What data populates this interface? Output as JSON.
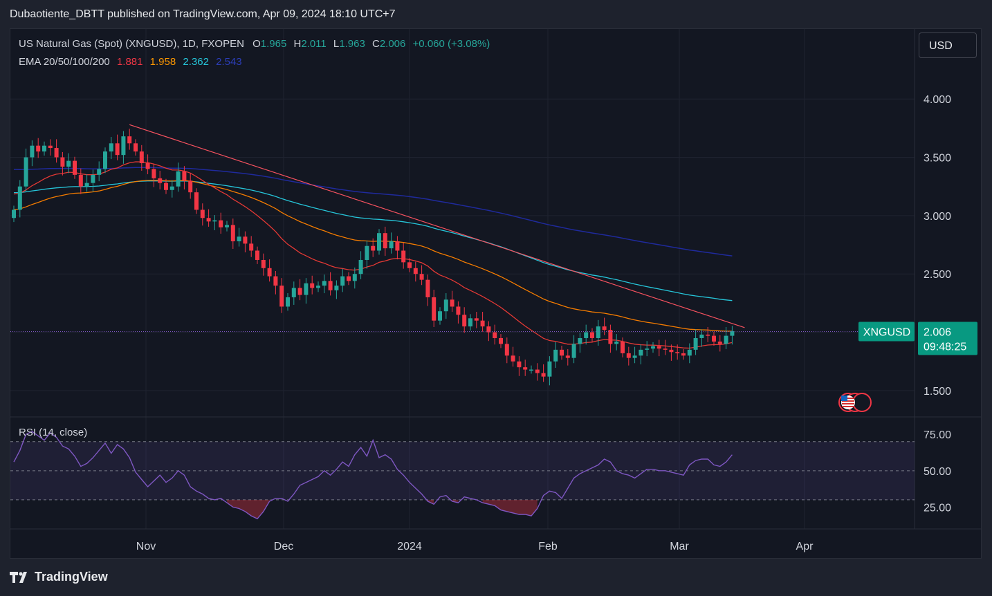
{
  "header": {
    "publish_line": "Dubaotiente_DBTT published on TradingView.com, Apr 09, 2024 18:10 UTC+7"
  },
  "legend": {
    "title": "US Natural Gas (Spot) (XNGUSD), 1D, FXOPEN",
    "o_label": "O",
    "o_value": "1.965",
    "h_label": "H",
    "h_value": "2.011",
    "l_label": "L",
    "l_value": "1.963",
    "c_label": "C",
    "c_value": "2.006",
    "change": "+0.060 (+3.08%)",
    "ema_label": "EMA 20/50/100/200",
    "ema20": "1.881",
    "ema50": "1.958",
    "ema100": "2.362",
    "ema200": "2.543"
  },
  "currency_button": "USD",
  "rsi_label": "RSI (14, close)",
  "price_tag": {
    "symbol": "XNGUSD",
    "price": "2.006",
    "countdown": "09:48:25"
  },
  "footer": {
    "brand": "TradingView"
  },
  "colors": {
    "background": "#131722",
    "up": "#26a69a",
    "down": "#f23645",
    "ema20": "#e53935",
    "ema50": "#f57c00",
    "ema100": "#26c6da",
    "ema200": "#1a237e",
    "trendline": "#f7525f",
    "rsi": "#7e57c2"
  },
  "chart_data": [
    {
      "type": "candlestick",
      "title": "US Natural Gas (Spot) (XNGUSD), 1D, FXOPEN",
      "x_ticks": [
        "Nov",
        "Dec",
        "2024",
        "Feb",
        "Mar",
        "Apr"
      ],
      "y_ticks": [
        4.0,
        3.5,
        3.0,
        2.5,
        1.5
      ],
      "y_tick_labels": [
        "4.000",
        "3.500",
        "3.000",
        "2.500",
        "1.500"
      ],
      "ylim": [
        1.28,
        4.6
      ],
      "last_price": 2.006,
      "closes": [
        3.05,
        3.25,
        3.5,
        3.6,
        3.55,
        3.6,
        3.58,
        3.5,
        3.42,
        3.47,
        3.35,
        3.25,
        3.28,
        3.35,
        3.4,
        3.55,
        3.62,
        3.52,
        3.68,
        3.62,
        3.55,
        3.45,
        3.4,
        3.32,
        3.28,
        3.22,
        3.25,
        3.38,
        3.3,
        3.2,
        3.05,
        2.98,
        2.95,
        2.96,
        2.9,
        2.92,
        2.78,
        2.82,
        2.76,
        2.7,
        2.62,
        2.55,
        2.48,
        2.4,
        2.22,
        2.3,
        2.38,
        2.32,
        2.42,
        2.38,
        2.4,
        2.44,
        2.36,
        2.4,
        2.48,
        2.44,
        2.5,
        2.62,
        2.74,
        2.7,
        2.85,
        2.72,
        2.78,
        2.7,
        2.6,
        2.55,
        2.5,
        2.45,
        2.3,
        2.1,
        2.18,
        2.28,
        2.22,
        2.15,
        2.05,
        2.12,
        2.1,
        2.05,
        2.0,
        1.95,
        1.9,
        1.8,
        1.75,
        1.7,
        1.68,
        1.68,
        1.65,
        1.62,
        1.75,
        1.85,
        1.8,
        1.78,
        1.9,
        1.95,
        2.0,
        1.95,
        2.05,
        2.02,
        1.9,
        1.92,
        1.82,
        1.78,
        1.8,
        1.85,
        1.86,
        1.88,
        1.86,
        1.85,
        1.83,
        1.82,
        1.8,
        1.85,
        1.95,
        1.98,
        1.97,
        1.92,
        1.9,
        1.97,
        2.01
      ]
    },
    {
      "type": "line",
      "title": "RSI (14, close)",
      "y_ticks": [
        75,
        50,
        25
      ],
      "y_tick_labels": [
        "75.00",
        "50.00",
        "25.00"
      ],
      "ylim": [
        10,
        87
      ],
      "overbought": 70,
      "oversold": 30,
      "values": [
        56,
        64,
        75,
        77,
        74,
        71,
        76,
        73,
        67,
        65,
        60,
        53,
        55,
        59,
        64,
        69,
        62,
        68,
        65,
        59,
        49,
        44,
        39,
        43,
        47,
        42,
        45,
        50,
        47,
        39,
        36,
        34,
        31,
        30,
        31,
        28,
        25,
        24,
        22,
        19,
        17,
        22,
        29,
        31,
        31,
        29,
        34,
        40,
        42,
        44,
        46,
        50,
        47,
        51,
        56,
        53,
        61,
        66,
        60,
        71,
        59,
        61,
        58,
        51,
        47,
        42,
        38,
        34,
        29,
        27,
        32,
        33,
        29,
        28,
        32,
        31,
        30,
        28,
        27,
        26,
        23,
        22,
        21,
        20,
        20,
        19,
        24,
        33,
        36,
        35,
        31,
        38,
        45,
        48,
        50,
        52,
        54,
        58,
        56,
        50,
        48,
        47,
        45,
        48,
        51,
        51,
        50,
        50,
        49,
        48,
        47,
        54,
        57,
        58,
        58,
        54,
        53,
        56,
        61
      ]
    }
  ]
}
